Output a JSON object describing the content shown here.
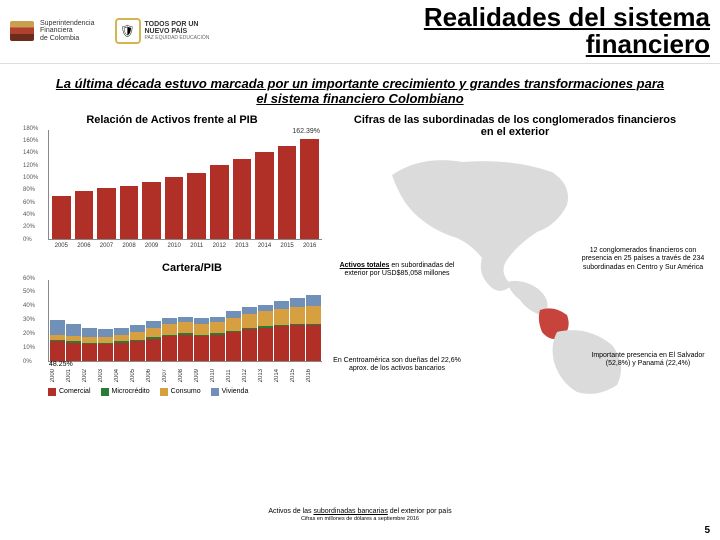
{
  "header": {
    "sfc_text": "Superintendencia\nFinanciera\nde Colombia",
    "nuevo_text": "TODOS POR UN\nNUEVO PAÍS",
    "nuevo_sub": "PAZ EQUIDAD EDUCACIÓN"
  },
  "title": "Realidades del sistema\nfinanciero",
  "subtitle": "La última década estuvo marcada por un importante crecimiento y grandes transformaciones para el sistema financiero Colombiano",
  "chart1": {
    "title": "Relación de Activos frente al PIB",
    "type": "bar",
    "ylim": [
      0,
      180
    ],
    "ytick_step": 20,
    "categories": [
      "2005",
      "2006",
      "2007",
      "2008",
      "2009",
      "2010",
      "2011",
      "2012",
      "2013",
      "2014",
      "2015",
      "2016"
    ],
    "values": [
      70,
      78,
      82,
      86,
      92,
      100,
      108,
      120,
      130,
      142,
      151,
      162.39
    ],
    "callout": "162.39%",
    "bar_color": "#b03028",
    "background_color": "#ffffff"
  },
  "chart2": {
    "title": "Cartera/PIB",
    "type": "stacked-bar",
    "ylim": [
      0,
      60
    ],
    "ytick_step": 10,
    "categories": [
      "2000",
      "2001",
      "2002",
      "2003",
      "2004",
      "2005",
      "2006",
      "2007",
      "2008",
      "2009",
      "2010",
      "2011",
      "2012",
      "2013",
      "2014",
      "2015",
      "2016"
    ],
    "series": [
      {
        "name": "Comercial",
        "color": "#b03028"
      },
      {
        "name": "Microcrédito",
        "color": "#2a7a3a"
      },
      {
        "name": "Consumo",
        "color": "#d6a040"
      },
      {
        "name": "Vivienda",
        "color": "#7090b8"
      }
    ],
    "stacks": [
      [
        14,
        1,
        4,
        11
      ],
      [
        13,
        1,
        4,
        9
      ],
      [
        12,
        1,
        4,
        7
      ],
      [
        12,
        1,
        4,
        6
      ],
      [
        13,
        1,
        5,
        5
      ],
      [
        14,
        1,
        6,
        5
      ],
      [
        16,
        1,
        7,
        5
      ],
      [
        18,
        1,
        8,
        4
      ],
      [
        19,
        1,
        8,
        4
      ],
      [
        18,
        1,
        8,
        4
      ],
      [
        19,
        1,
        8,
        4
      ],
      [
        21,
        1,
        9,
        5
      ],
      [
        23,
        1,
        10,
        5
      ],
      [
        24,
        1,
        11,
        5
      ],
      [
        25,
        1,
        12,
        6
      ],
      [
        26,
        1,
        12,
        7
      ],
      [
        26,
        1,
        13,
        8.25
      ]
    ],
    "callout": "48.25%"
  },
  "map": {
    "title": "Cifras de las subordinadas de los conglomerados financieros en el exterior",
    "note1_u": "Activos totales",
    "note1": "en subordinadas del exterior por USD$85,058 millones",
    "note2": "12 conglomerados financieros con presencia en 25 países a través de 234 subordinadas en Centro y Sur América",
    "note3": "En Centroamérica son dueñas del 22,6% aprox. de los activos bancarios",
    "note4": "Importante presencia en El Salvador (52,8%) y Panamá (22,4%)",
    "land_color": "#d8d8d8",
    "highlight_color": "#c03028"
  },
  "footnote": "Activos de las subordinadas bancarias del exterior por país",
  "footnote_u": "subordinadas bancarias",
  "footnote_sub": "Cifras en millones de dólares a septiembre 2016",
  "page": "5"
}
